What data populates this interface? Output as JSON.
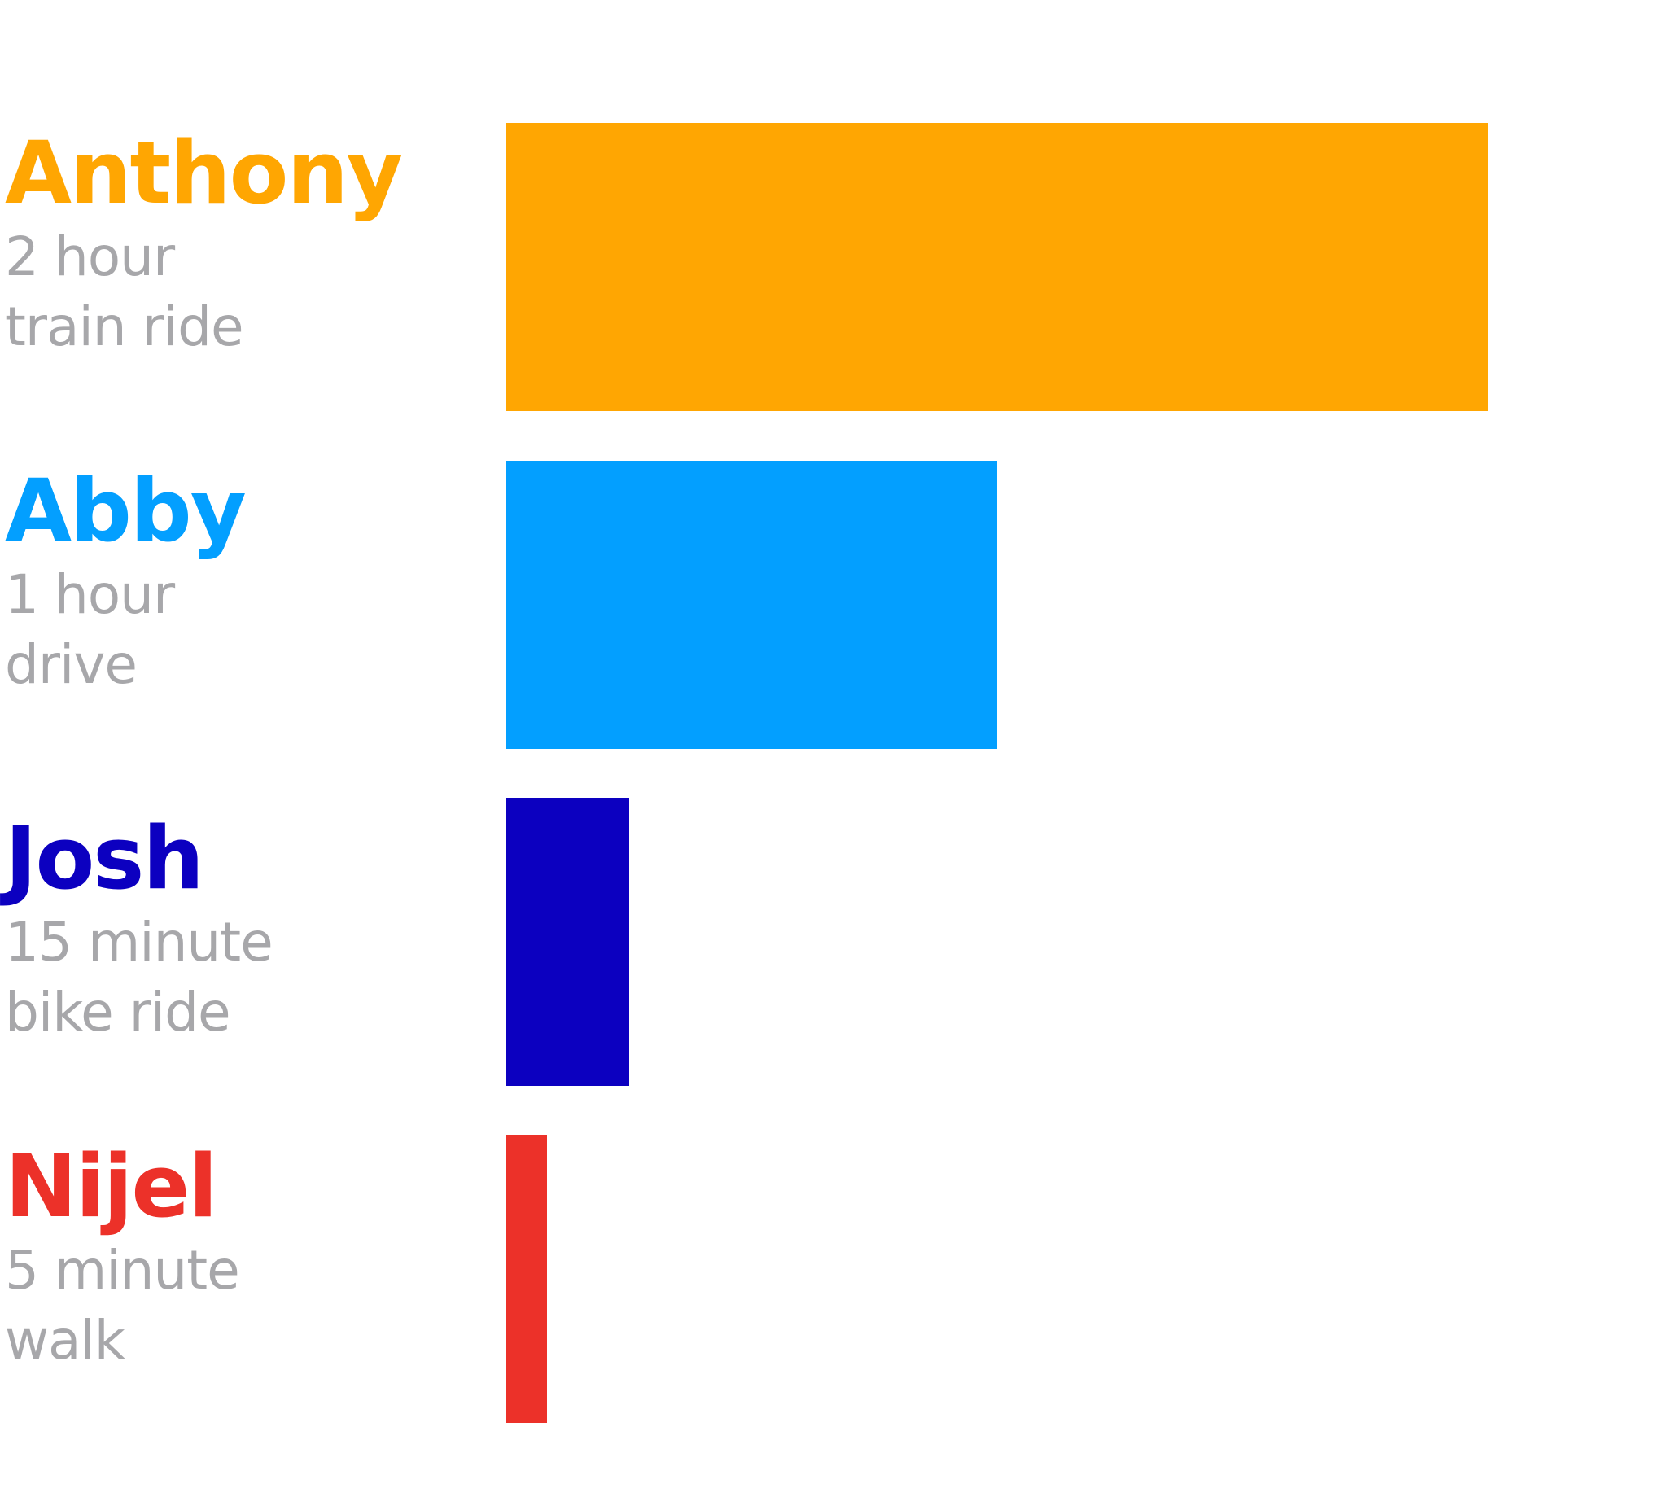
{
  "chart_data": {
    "type": "bar",
    "orientation": "horizontal",
    "unit": "minutes",
    "xlim": [
      0,
      120
    ],
    "grid": false,
    "legend": "none",
    "categories": [
      "Anthony",
      "Abby",
      "Josh",
      "Nijel"
    ],
    "values": [
      120,
      60,
      15,
      5
    ],
    "items": [
      {
        "name": "Anthony",
        "line1": "2 hour",
        "line2": "train ride",
        "minutes": 120,
        "color": "#FFA602"
      },
      {
        "name": "Abby",
        "line1": "1 hour",
        "line2": "drive",
        "minutes": 60,
        "color": "#039FFF"
      },
      {
        "name": "Josh",
        "line1": "15 minute",
        "line2": "bike ride",
        "minutes": 15,
        "color": "#0C00C0"
      },
      {
        "name": "Nijel",
        "line1": "5 minute",
        "line2": "walk",
        "minutes": 5,
        "color": "#EC3129"
      }
    ],
    "desc_color": "#A7A7AA"
  }
}
